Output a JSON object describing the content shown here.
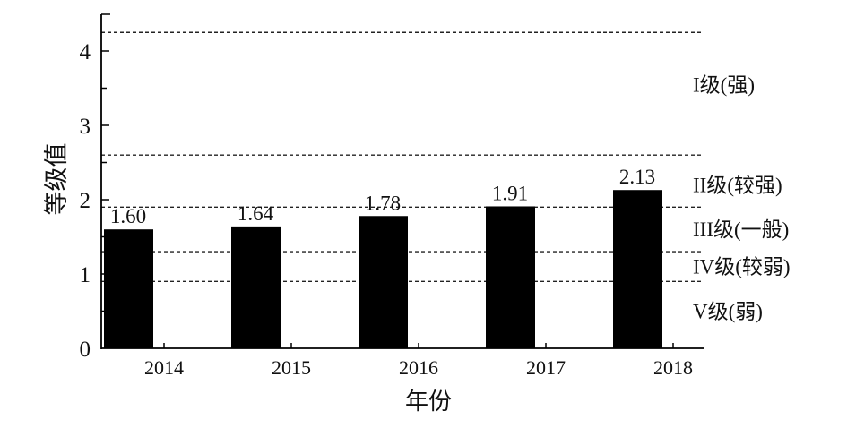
{
  "chart_data": {
    "type": "bar",
    "categories": [
      "2014",
      "2015",
      "2016",
      "2017",
      "2018"
    ],
    "values": [
      1.6,
      1.64,
      1.78,
      1.91,
      2.13
    ],
    "data_labels": [
      "1.60",
      "1.64",
      "1.78",
      "1.91",
      "2.13"
    ],
    "xlabel": "年份",
    "ylabel": "等级值",
    "ylim": [
      0,
      4.45
    ],
    "yticks": [
      0,
      1,
      2,
      3,
      4
    ],
    "grid": false,
    "bar_color": "#000000",
    "reference_lines": [
      4.25,
      2.6,
      1.9,
      1.3,
      0.9
    ],
    "grade_labels": [
      {
        "text": "I级(强)",
        "y": 3.55
      },
      {
        "text": "II级(较强)",
        "y": 2.2
      },
      {
        "text": "III级(一般)",
        "y": 1.6
      },
      {
        "text": "IV级(较弱)",
        "y": 1.1
      },
      {
        "text": "V级(弱)",
        "y": 0.5
      }
    ]
  }
}
